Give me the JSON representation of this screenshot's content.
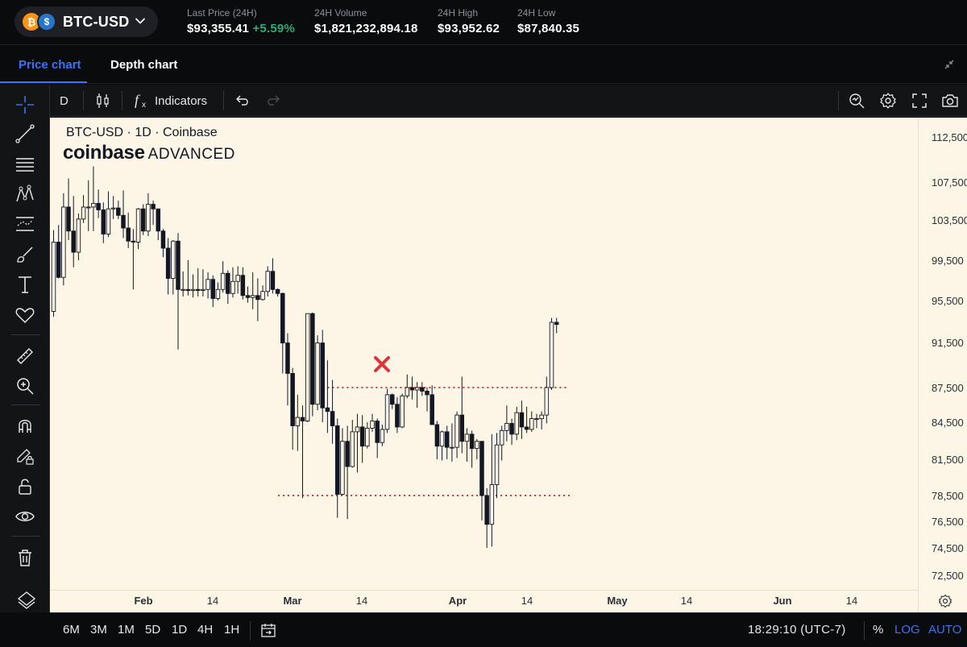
{
  "header": {
    "pair": "BTC-USD",
    "btc_symbol": "₿",
    "usd_symbol": "$",
    "stats": [
      {
        "label": "Last Price (24H)",
        "value": "$93,355.41",
        "change": "+5.59%"
      },
      {
        "label": "24H Volume",
        "value": "$1,821,232,894.18"
      },
      {
        "label": "24H High",
        "value": "$93,952.62"
      },
      {
        "label": "24H Low",
        "value": "$87,840.35"
      }
    ]
  },
  "tabs": {
    "price": "Price chart",
    "depth": "Depth chart"
  },
  "chart_toolbar": {
    "interval": "D",
    "indicators": "Indicators"
  },
  "chart": {
    "title": "BTC-USD · 1D · Coinbase",
    "brand_main": "coinbase",
    "brand_sub": "ADVANCED",
    "colors": {
      "background": "#fdf6e6",
      "candle": "#131722",
      "level_line": "#e0343b",
      "marker": "#e0343b"
    }
  },
  "chart_data": {
    "type": "candlestick",
    "yticks": [
      "112,500",
      "107,500",
      "103,500",
      "99,500",
      "95,500",
      "91,500",
      "87,500",
      "84,500",
      "81,500",
      "78,500",
      "76,500",
      "74,500",
      "72,500"
    ],
    "xticks": [
      {
        "label": "Feb",
        "month": true
      },
      {
        "label": "14",
        "month": false
      },
      {
        "label": "Mar",
        "month": true
      },
      {
        "label": "14",
        "month": false
      },
      {
        "label": "Apr",
        "month": true
      },
      {
        "label": "14",
        "month": false
      },
      {
        "label": "May",
        "month": true
      },
      {
        "label": "14",
        "month": false
      },
      {
        "label": "Jun",
        "month": true
      },
      {
        "label": "14",
        "month": false
      }
    ],
    "ohlc": [
      [
        94500,
        102500,
        94000,
        101300
      ],
      [
        101300,
        103000,
        97700,
        97800
      ],
      [
        97800,
        106400,
        97000,
        104900
      ],
      [
        104900,
        108000,
        101500,
        102400
      ],
      [
        102400,
        106100,
        98800,
        100300
      ],
      [
        100300,
        104200,
        99500,
        103600
      ],
      [
        103600,
        106200,
        103200,
        104900
      ],
      [
        104900,
        107800,
        102400,
        104900
      ],
      [
        104900,
        109300,
        102400,
        105300
      ],
      [
        105300,
        106800,
        103700,
        104600
      ],
      [
        104600,
        105400,
        101200,
        102100
      ],
      [
        102100,
        106600,
        101800,
        104700
      ],
      [
        104700,
        106100,
        103600,
        104800
      ],
      [
        104800,
        105600,
        103600,
        104000
      ],
      [
        104000,
        106700,
        101700,
        102700
      ],
      [
        102700,
        104300,
        100700,
        101400
      ],
      [
        101400,
        102600,
        96600,
        101300
      ],
      [
        101300,
        104800,
        100600,
        104700
      ],
      [
        104700,
        105200,
        102000,
        102400
      ],
      [
        102400,
        106400,
        101900,
        105200
      ],
      [
        105200,
        105600,
        103000,
        104700
      ],
      [
        104700,
        104700,
        101500,
        102400
      ],
      [
        102400,
        102600,
        99800,
        100700
      ],
      [
        100700,
        101700,
        96100,
        97700
      ],
      [
        97700,
        101500,
        96100,
        101400
      ],
      [
        101400,
        102200,
        91000,
        96600
      ],
      [
        96600,
        98400,
        95900,
        96600
      ],
      [
        96600,
        99500,
        96000,
        96500
      ],
      [
        96500,
        98100,
        95800,
        96600
      ],
      [
        96600,
        98700,
        95900,
        96500
      ],
      [
        96500,
        98600,
        95900,
        96600
      ],
      [
        96600,
        98300,
        95700,
        97600
      ],
      [
        97600,
        98000,
        94900,
        95700
      ],
      [
        95700,
        97300,
        95500,
        96600
      ],
      [
        96600,
        99400,
        96300,
        98200
      ],
      [
        98200,
        98500,
        95200,
        96200
      ],
      [
        96200,
        98800,
        95800,
        97400
      ],
      [
        97400,
        98900,
        96200,
        98000
      ],
      [
        98000,
        98800,
        95600,
        96000
      ],
      [
        96000,
        96900,
        95300,
        95800
      ],
      [
        95800,
        98300,
        94700,
        96000
      ],
      [
        96000,
        97700,
        93600,
        95600
      ],
      [
        95600,
        97000,
        95500,
        96400
      ],
      [
        96400,
        98900,
        95900,
        98400
      ],
      [
        98400,
        99700,
        96200,
        96600
      ],
      [
        96600,
        96700,
        95900,
        96200
      ],
      [
        96200,
        96300,
        88800,
        91600
      ],
      [
        91600,
        92500,
        86000,
        88800
      ],
      [
        88800,
        89300,
        82300,
        84300
      ],
      [
        84300,
        86900,
        82200,
        85000
      ],
      [
        85000,
        86000,
        78300,
        84700
      ],
      [
        84700,
        94000,
        84600,
        94300
      ],
      [
        94300,
        94400,
        85100,
        86100
      ],
      [
        86100,
        92300,
        85600,
        91600
      ],
      [
        91600,
        92800,
        84600,
        85800
      ],
      [
        85800,
        90000,
        83700,
        85500
      ],
      [
        85500,
        88200,
        82800,
        84300
      ],
      [
        84300,
        84900,
        76800,
        78600
      ],
      [
        78600,
        84100,
        78500,
        83000
      ],
      [
        83000,
        84300,
        76700,
        80900
      ],
      [
        80900,
        84800,
        80800,
        83800
      ],
      [
        83800,
        85300,
        80400,
        84200
      ],
      [
        84200,
        85200,
        81200,
        82600
      ],
      [
        82600,
        84600,
        82400,
        84100
      ],
      [
        84100,
        85300,
        83800,
        84700
      ],
      [
        84700,
        84900,
        81600,
        82900
      ],
      [
        82900,
        84400,
        82600,
        84000
      ],
      [
        84000,
        87400,
        83700,
        86900
      ],
      [
        86900,
        87000,
        85700,
        86100
      ],
      [
        86100,
        86700,
        83700,
        84200
      ],
      [
        84200,
        87000,
        84100,
        86800
      ],
      [
        86800,
        88700,
        86600,
        87500
      ],
      [
        87500,
        88500,
        86500,
        87300
      ],
      [
        87300,
        88000,
        85800,
        87500
      ],
      [
        87500,
        88000,
        86800,
        87200
      ],
      [
        87200,
        87500,
        85500,
        86900
      ],
      [
        86900,
        87700,
        84500,
        84400
      ],
      [
        84400,
        84700,
        81500,
        82600
      ],
      [
        82600,
        83900,
        81400,
        83800
      ],
      [
        83800,
        84300,
        81500,
        82500
      ],
      [
        82500,
        84500,
        81300,
        82500
      ],
      [
        82500,
        85500,
        81600,
        85200
      ],
      [
        85200,
        88500,
        82000,
        83000
      ],
      [
        83000,
        84100,
        81300,
        83600
      ],
      [
        83600,
        83900,
        80800,
        82400
      ],
      [
        82400,
        83200,
        81500,
        83000
      ],
      [
        83000,
        83000,
        76600,
        78500
      ],
      [
        78500,
        79100,
        74500,
        76300
      ],
      [
        76300,
        83600,
        74600,
        79400
      ],
      [
        79400,
        83700,
        78300,
        82700
      ],
      [
        82700,
        84300,
        81400,
        83900
      ],
      [
        83900,
        86000,
        83000,
        84500
      ],
      [
        84500,
        84900,
        82700,
        83600
      ],
      [
        83600,
        85900,
        83100,
        85400
      ],
      [
        85400,
        86400,
        83200,
        84200
      ],
      [
        84200,
        85900,
        83700,
        84000
      ],
      [
        84000,
        85500,
        83800,
        84900
      ],
      [
        84900,
        85300,
        84100,
        84900
      ],
      [
        84900,
        85500,
        84000,
        85200
      ],
      [
        85200,
        88500,
        84500,
        87500
      ],
      [
        87500,
        93900,
        87300,
        93500
      ],
      [
        93500,
        93900,
        92500,
        93300
      ]
    ],
    "levels": [
      {
        "price": 87500,
        "from_index": 55,
        "to_index": 102
      },
      {
        "price": 78500,
        "from_index": 47,
        "to_index": 103
      }
    ],
    "marker": {
      "index": 66,
      "price": 89500,
      "symbol": "x"
    }
  },
  "bottom_bar": {
    "timeframes": [
      "6M",
      "3M",
      "1M",
      "5D",
      "1D",
      "4H",
      "1H"
    ],
    "time": "18:29:10 (UTC-7)",
    "percent": "%",
    "log": "LOG",
    "auto": "AUTO"
  }
}
